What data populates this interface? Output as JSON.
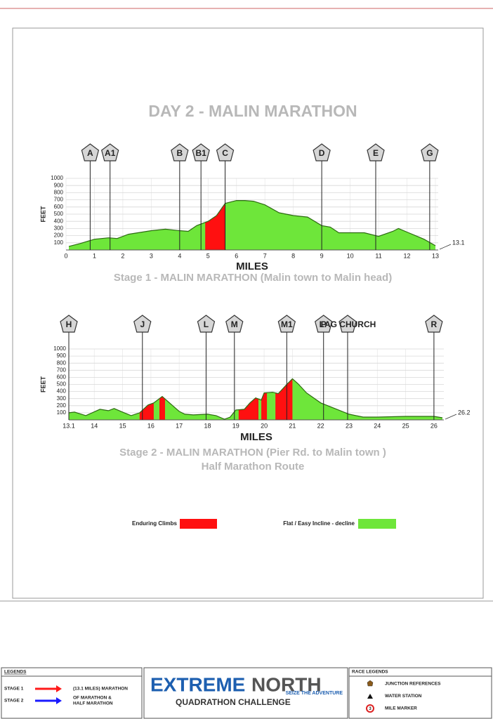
{
  "header": {
    "title": "DAY 2 - MALIN MARATHON"
  },
  "chart_data": [
    {
      "type": "area",
      "subtitle": [
        "Stage 1 - MALIN MARATHON (Malin town to Malin head)"
      ],
      "x_label": "MILES",
      "y_label": "FEET",
      "x": [
        0.1,
        0.5,
        1,
        1.5,
        1.8,
        2.2,
        3,
        3.5,
        4,
        4.3,
        4.6,
        5,
        5.3,
        5.6,
        6,
        6.3,
        6.6,
        7,
        7.5,
        8,
        8.5,
        9,
        9.3,
        9.6,
        10,
        10.5,
        11,
        11.5,
        11.7,
        12,
        12.3,
        12.6,
        13
      ],
      "values": [
        50,
        90,
        150,
        170,
        160,
        220,
        270,
        290,
        270,
        260,
        340,
        400,
        480,
        650,
        690,
        690,
        680,
        630,
        520,
        480,
        460,
        340,
        320,
        240,
        240,
        240,
        190,
        260,
        300,
        250,
        200,
        150,
        60
      ],
      "climbs": [
        [
          4.9,
          5.6
        ]
      ],
      "markers": [
        {
          "label": "A",
          "x": 0.85
        },
        {
          "label": "A1",
          "x": 1.55
        },
        {
          "label": "B",
          "x": 4.0
        },
        {
          "label": "B1",
          "x": 4.75
        },
        {
          "label": "C",
          "x": 5.6
        },
        {
          "label": "D",
          "x": 9.0
        },
        {
          "label": "E",
          "x": 10.9
        },
        {
          "label": "G",
          "x": 12.8
        }
      ],
      "end_label": 13.1,
      "xlim": [
        0,
        13.1
      ],
      "xticks": [
        0,
        1,
        2,
        3,
        4,
        5,
        6,
        7,
        8,
        9,
        10,
        11,
        12,
        13
      ],
      "ylim": [
        0,
        1000
      ],
      "yticks": [
        100,
        200,
        300,
        400,
        500,
        600,
        700,
        800,
        900,
        1000
      ],
      "grid": true
    },
    {
      "type": "area",
      "subtitle": [
        "Stage 2 - MALIN MARATHON (Pier Rd. to Malin town )",
        "Half Marathon Route"
      ],
      "x_label": "MILES",
      "y_label": "FEET",
      "x": [
        13.1,
        13.3,
        13.7,
        14.2,
        14.5,
        14.7,
        15,
        15.3,
        15.6,
        15.9,
        16.1,
        16.4,
        16.8,
        17,
        17.2,
        17.5,
        18,
        18.3,
        18.6,
        18.8,
        19,
        19.3,
        19.5,
        19.7,
        19.9,
        20,
        20.3,
        20.5,
        20.8,
        21,
        21.2,
        21.5,
        22,
        22.5,
        23,
        23.5,
        24,
        25,
        26,
        26.3
      ],
      "values": [
        100,
        110,
        60,
        150,
        130,
        160,
        110,
        60,
        100,
        210,
        240,
        330,
        190,
        120,
        80,
        70,
        80,
        60,
        10,
        40,
        140,
        150,
        240,
        310,
        280,
        380,
        390,
        370,
        500,
        580,
        510,
        380,
        240,
        160,
        80,
        40,
        40,
        50,
        50,
        30
      ],
      "climbs": [
        [
          15.6,
          16.1
        ],
        [
          16.3,
          16.5
        ],
        [
          19.1,
          19.8
        ],
        [
          19.9,
          20.1
        ],
        [
          20.4,
          21.0
        ]
      ],
      "markers": [
        {
          "label": "H",
          "x": 13.1
        },
        {
          "label": "J",
          "x": 15.7
        },
        {
          "label": "L",
          "x": 17.95
        },
        {
          "label": "M",
          "x": 18.95
        },
        {
          "label": "M1",
          "x": 20.8
        },
        {
          "label": "P",
          "x": 22.1
        },
        {
          "label": "LAG CHURCH",
          "x": 22.95
        },
        {
          "label": "R",
          "x": 26.0
        }
      ],
      "end_label": 26.2,
      "xlim": [
        13.1,
        26.35
      ],
      "xticks": [
        13.1,
        14,
        15,
        16,
        17,
        18,
        19,
        20,
        21,
        22,
        23,
        24,
        25,
        26
      ],
      "ylim": [
        0,
        1000
      ],
      "yticks": [
        100,
        200,
        300,
        400,
        500,
        600,
        700,
        800,
        900,
        1000
      ],
      "grid": true
    }
  ],
  "legend": {
    "items": [
      {
        "label": "Enduring Climbs",
        "color": "#ff1010"
      },
      {
        "label": "Flat / Easy Incline - decline",
        "color": "#6ee63a"
      }
    ]
  },
  "footer": {
    "legends_title": "LEGENDS",
    "stages": [
      {
        "label": "STAGE 1",
        "color": "#ff1a1a",
        "lines": [
          "(13.1 MILES) MARATHON"
        ]
      },
      {
        "label": "STAGE 2",
        "color": "#1a1aff",
        "lines": [
          "OF MARATHON &",
          "HALF MARATHON"
        ]
      }
    ],
    "logo": {
      "name": [
        "EXTREME",
        "NORTH"
      ],
      "tagline": "SEIZE THE ADVENTURE",
      "subtitle": "QUADRATHON CHALLENGE"
    },
    "race_legends_title": "RACE LEGENDS",
    "race_legends": [
      "JUNCTION REFERENCES",
      "WATER STATION",
      "MILE MARKER"
    ],
    "mile_marker_icon": "3"
  }
}
